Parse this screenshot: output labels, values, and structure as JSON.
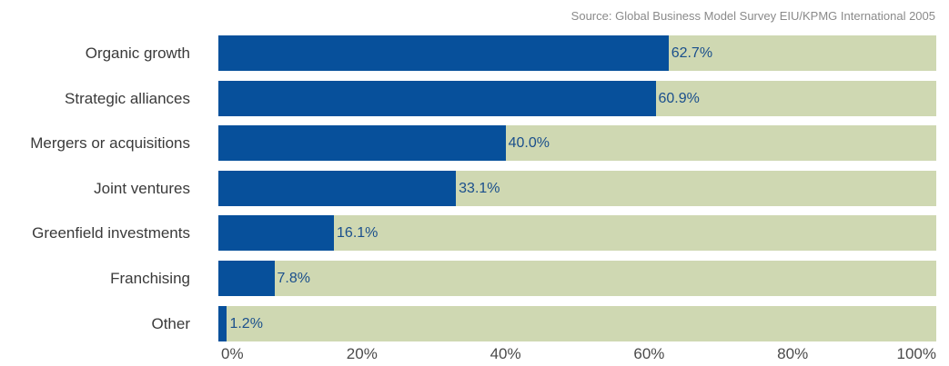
{
  "source": "Source: Global Business Model Survey EIU/KPMG International 2005",
  "colors": {
    "fill": "#07509b",
    "track": "#cfd8b2"
  },
  "chart_data": {
    "type": "bar",
    "orientation": "horizontal",
    "categories": [
      "Organic growth",
      "Strategic alliances",
      "Mergers or acquisitions",
      "Joint ventures",
      "Greenfield investments",
      "Franchising",
      "Other"
    ],
    "values": [
      62.7,
      60.9,
      40.0,
      33.1,
      16.1,
      7.8,
      1.2
    ],
    "value_labels": [
      "62.7%",
      "60.9%",
      "40.0%",
      "33.1%",
      "16.1%",
      "7.8%",
      "1.2%"
    ],
    "xlim": [
      0,
      100
    ],
    "ticks": [
      0,
      20,
      40,
      60,
      80,
      100
    ],
    "tick_labels": [
      "0%",
      "20%",
      "40%",
      "60%",
      "80%",
      "100%"
    ],
    "grid": false
  }
}
